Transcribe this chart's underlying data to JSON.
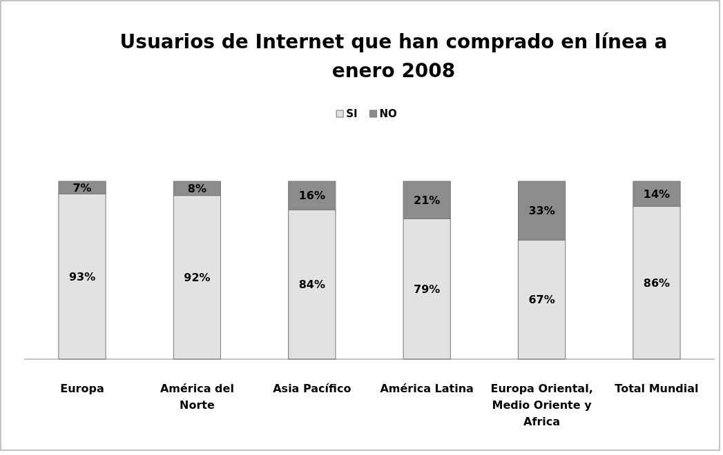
{
  "chart_data": {
    "type": "bar",
    "title": "Usuarios de Internet que han comprado en línea a enero 2008",
    "categories": [
      "Europa",
      "América del Norte",
      "Asia Pacífico",
      "América Latina",
      "Europa Oriental, Medio Oriente y Africa",
      "Total Mundial"
    ],
    "stacked": true,
    "legend": "top",
    "grid": false,
    "series": [
      {
        "name": "SI",
        "color": "#e2e2e2",
        "values": [
          93,
          92,
          84,
          79,
          67,
          86
        ],
        "value_labels": [
          "93%",
          "92%",
          "84%",
          "79%",
          "67%",
          "86%"
        ]
      },
      {
        "name": "NO",
        "color": "#8c8c8c",
        "values": [
          7,
          8,
          16,
          21,
          33,
          14
        ],
        "value_labels": [
          "7%",
          "8%",
          "16%",
          "21%",
          "33%",
          "14%"
        ]
      }
    ]
  }
}
